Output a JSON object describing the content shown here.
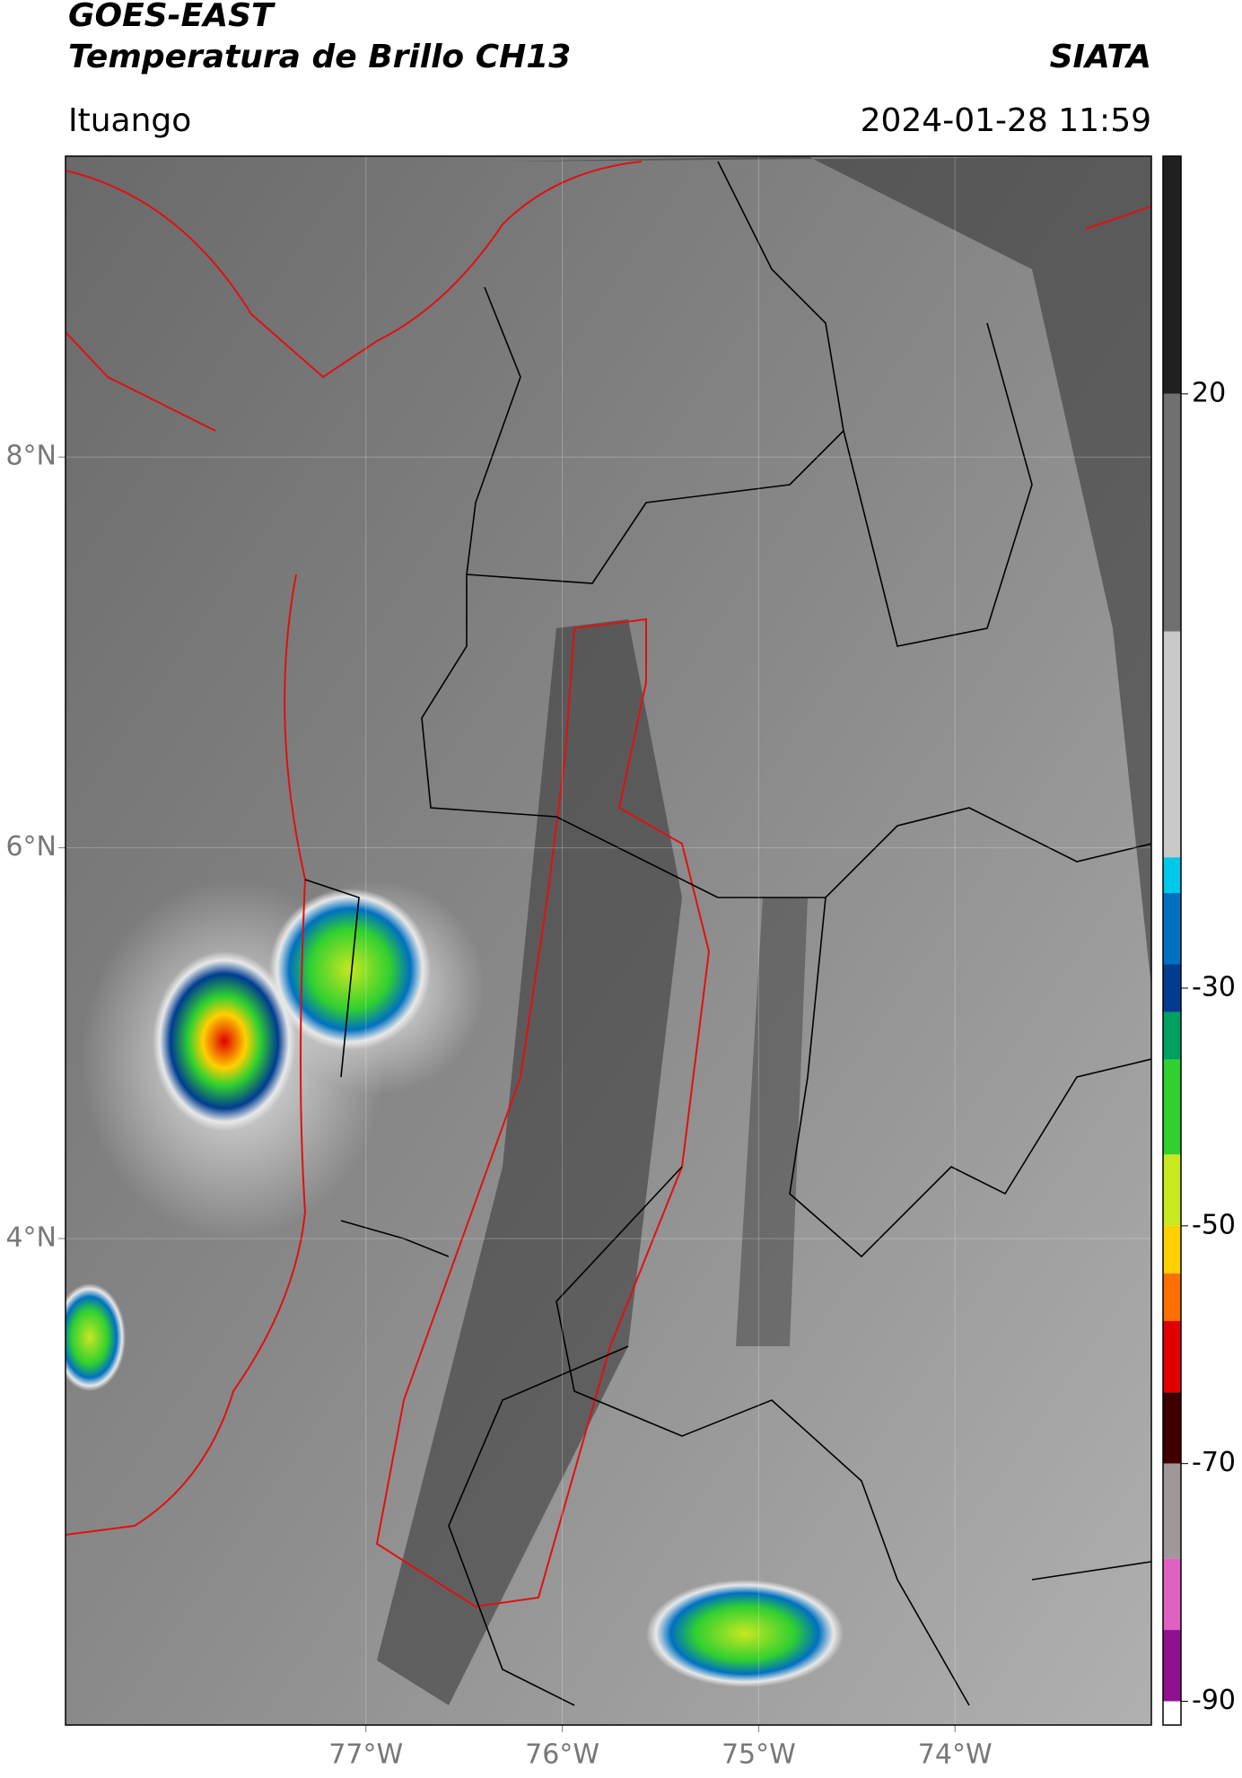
{
  "header": {
    "title": "GOES-EAST",
    "subtitle": "Temperatura de Brillo CH13",
    "brand": "SIATA",
    "location": "Ituango",
    "timestamp": "2024-01-28 11:59"
  },
  "map": {
    "lon_range": [
      -78.53,
      -73.0
    ],
    "lat_range": [
      1.51,
      9.54
    ],
    "lon_ticks": [
      {
        "value": -77,
        "label": "77°W"
      },
      {
        "value": -76,
        "label": "76°W"
      },
      {
        "value": -75,
        "label": "75°W"
      },
      {
        "value": -74,
        "label": "74°W"
      }
    ],
    "lat_ticks": [
      {
        "value": 8,
        "label": "8°N"
      },
      {
        "value": 6,
        "label": "6°N"
      },
      {
        "value": 4,
        "label": "4°N"
      }
    ],
    "grid": true
  },
  "colorbar": {
    "range": [
      -92,
      40
    ],
    "ticks": [
      20,
      -30,
      -50,
      -70,
      -90
    ],
    "stops": [
      {
        "from": 40,
        "to": 20,
        "color": "#202020"
      },
      {
        "from": 20,
        "to": 0,
        "color": "#707070"
      },
      {
        "from": 0,
        "to": -19,
        "color": "#c8c8c8"
      },
      {
        "from": -19,
        "to": -22,
        "color": "#00c8e8"
      },
      {
        "from": -22,
        "to": -28,
        "color": "#0070c0"
      },
      {
        "from": -28,
        "to": -32,
        "color": "#003c90"
      },
      {
        "from": -32,
        "to": -36,
        "color": "#00a060"
      },
      {
        "from": -36,
        "to": -44,
        "color": "#30d030"
      },
      {
        "from": -44,
        "to": -50,
        "color": "#c8e820"
      },
      {
        "from": -50,
        "to": -54,
        "color": "#ffd000"
      },
      {
        "from": -54,
        "to": -58,
        "color": "#ff7000"
      },
      {
        "from": -58,
        "to": -64,
        "color": "#e00000"
      },
      {
        "from": -64,
        "to": -70,
        "color": "#400000"
      },
      {
        "from": -70,
        "to": -78,
        "color": "#a09898"
      },
      {
        "from": -78,
        "to": -84,
        "color": "#e060c0"
      },
      {
        "from": -84,
        "to": -90,
        "color": "#901090"
      },
      {
        "from": -90,
        "to": -92,
        "color": "#ffffff"
      }
    ]
  }
}
